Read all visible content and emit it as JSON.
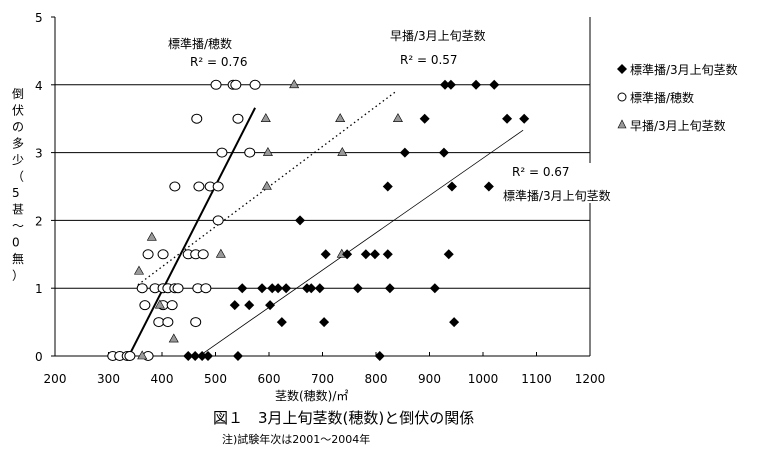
{
  "chart_data": {
    "type": "scatter",
    "title": "図１　3月上旬茎数(穂数)と倒伏の関係",
    "note": "注)試験年次は2001～2004年",
    "xlabel": "茎数(穂数)/㎡",
    "ylabel": "倒伏の多少（5甚～0無）",
    "xlim": [
      200,
      1200
    ],
    "ylim": [
      0,
      5
    ],
    "xticks": [
      "200",
      "300",
      "400",
      "500",
      "600",
      "700",
      "800",
      "900",
      "1000",
      "1100",
      "1200"
    ],
    "yticks": [
      "0",
      "1",
      "2",
      "3",
      "4",
      "5"
    ],
    "grid": "horizontal at 1,2,3,4",
    "legend_position": "right",
    "series": [
      {
        "name": "標準播/3月上旬茎数",
        "marker": "diamond",
        "color": "#000000",
        "points": [
          [
            449,
            0
          ],
          [
            462,
            0
          ],
          [
            475,
            0
          ],
          [
            486,
            0
          ],
          [
            542,
            0
          ],
          [
            807,
            0
          ],
          [
            624,
            0.5
          ],
          [
            703,
            0.5
          ],
          [
            946,
            0.5
          ],
          [
            536,
            0.75
          ],
          [
            563,
            0.75
          ],
          [
            602,
            0.75
          ],
          [
            550,
            1
          ],
          [
            587,
            1
          ],
          [
            606,
            1
          ],
          [
            617,
            1
          ],
          [
            632,
            1
          ],
          [
            671,
            1
          ],
          [
            679,
            1
          ],
          [
            695,
            1
          ],
          [
            766,
            1
          ],
          [
            826,
            1
          ],
          [
            910,
            1
          ],
          [
            706,
            1.5
          ],
          [
            746,
            1.5
          ],
          [
            781,
            1.5
          ],
          [
            798,
            1.5
          ],
          [
            822,
            1.5
          ],
          [
            936,
            1.5
          ],
          [
            658,
            2
          ],
          [
            822,
            2.5
          ],
          [
            942,
            2.5
          ],
          [
            1011,
            2.5
          ],
          [
            854,
            3
          ],
          [
            927,
            3
          ],
          [
            891,
            3.5
          ],
          [
            1045,
            3.5
          ],
          [
            1077,
            3.5
          ],
          [
            929,
            4
          ],
          [
            940,
            4
          ],
          [
            987,
            4
          ],
          [
            1021,
            4
          ]
        ],
        "trend": {
          "from": [
            477,
            0.04
          ],
          "to": [
            1075,
            3.33
          ],
          "style": "thin solid"
        },
        "r2_label": "R² = 0.67",
        "annotation": "標準播/3月上旬茎数"
      },
      {
        "name": "標準播/穂数",
        "marker": "circle",
        "color": "#ffffff",
        "points": [
          [
            308,
            0
          ],
          [
            321,
            0
          ],
          [
            335,
            0
          ],
          [
            340,
            0
          ],
          [
            374,
            0
          ],
          [
            394,
            0.5
          ],
          [
            411,
            0.5
          ],
          [
            463,
            0.5
          ],
          [
            368,
            0.75
          ],
          [
            402,
            0.75
          ],
          [
            419,
            0.75
          ],
          [
            363,
            1
          ],
          [
            387,
            1
          ],
          [
            402,
            1
          ],
          [
            411,
            1
          ],
          [
            424,
            1
          ],
          [
            430,
            1
          ],
          [
            467,
            1
          ],
          [
            482,
            1
          ],
          [
            374,
            1.5
          ],
          [
            402,
            1.5
          ],
          [
            449,
            1.5
          ],
          [
            463,
            1.5
          ],
          [
            477,
            1.5
          ],
          [
            505,
            2
          ],
          [
            424,
            2.5
          ],
          [
            469,
            2.5
          ],
          [
            490,
            2.5
          ],
          [
            505,
            2.5
          ],
          [
            512,
            3
          ],
          [
            564,
            3
          ],
          [
            465,
            3.5
          ],
          [
            542,
            3.5
          ],
          [
            501,
            4
          ],
          [
            533,
            4
          ],
          [
            538,
            4
          ],
          [
            574,
            4
          ]
        ],
        "trend": {
          "from": [
            340,
            0.03
          ],
          "to": [
            574,
            3.66
          ],
          "style": "thick solid"
        },
        "r2_label": "R² = 0.76",
        "annotation": "標準播/穂数"
      },
      {
        "name": "早播/3月上旬茎数",
        "marker": "triangle",
        "color": "#999999",
        "points": [
          [
            363,
            0
          ],
          [
            422,
            0.25
          ],
          [
            396,
            0.75
          ],
          [
            357,
            1.25
          ],
          [
            510,
            1.5
          ],
          [
            736,
            1.5
          ],
          [
            381,
            1.75
          ],
          [
            596,
            2.5
          ],
          [
            598,
            3
          ],
          [
            737,
            3
          ],
          [
            594,
            3.5
          ],
          [
            733,
            3.5
          ],
          [
            841,
            3.5
          ],
          [
            647,
            4
          ]
        ],
        "trend": {
          "from": [
            355,
            1.05
          ],
          "to": [
            837,
            3.9
          ],
          "style": "dotted"
        },
        "r2_label": "R² = 0.57",
        "annotation": "早播/3月上旬茎数"
      }
    ]
  }
}
